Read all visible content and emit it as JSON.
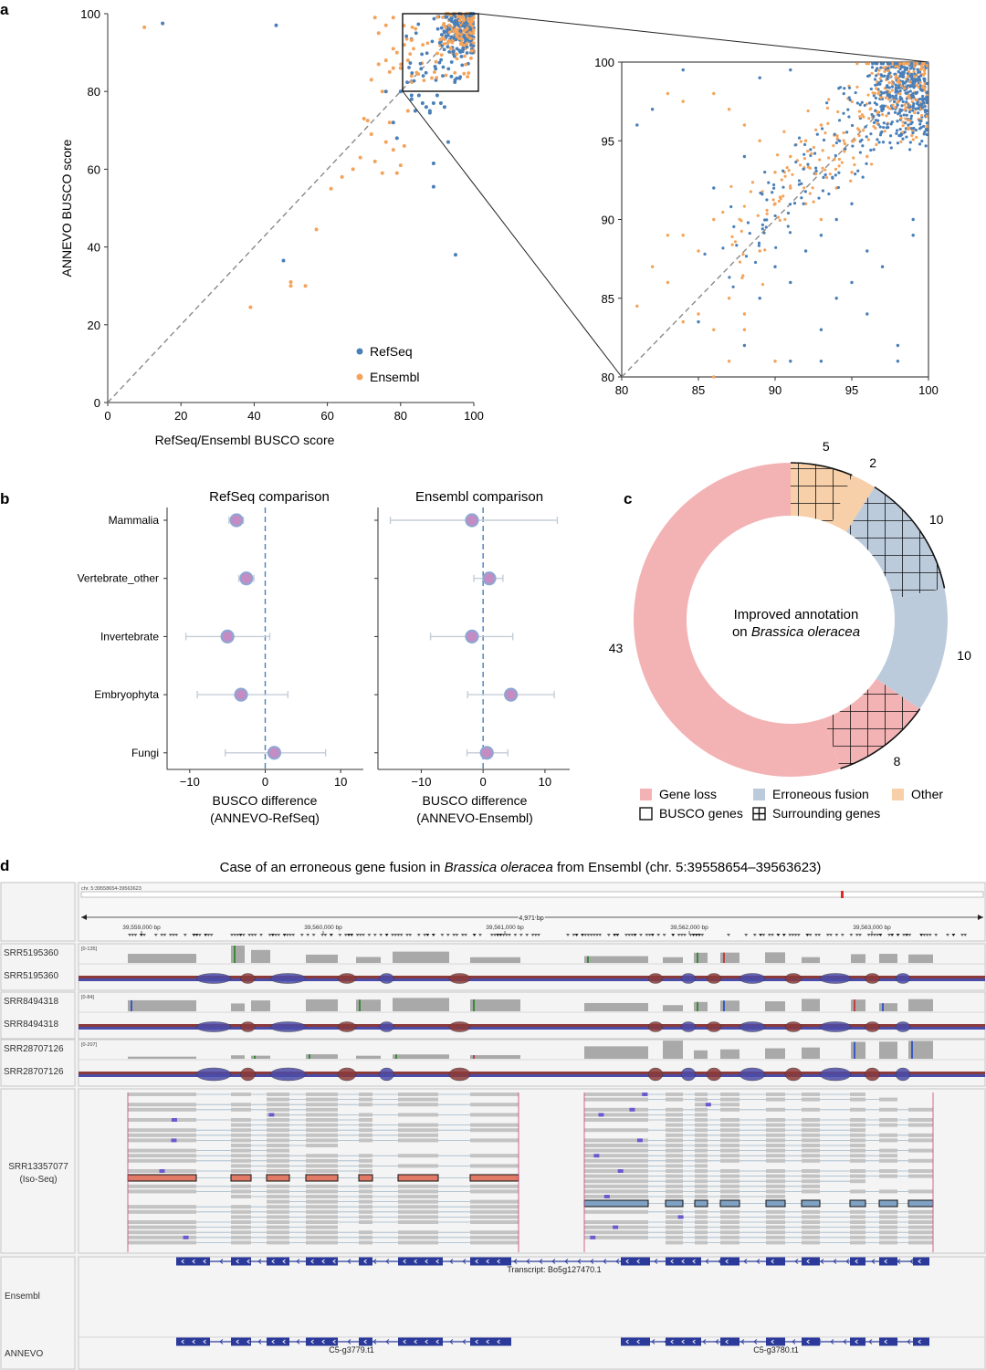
{
  "panel_labels": {
    "a": "a",
    "b": "b",
    "c": "c",
    "d": "d"
  },
  "colors": {
    "refseq": "#4a7fb8",
    "ensembl": "#f4a35a",
    "diag": "#7f7f7f",
    "gene_loss": "#f3b3b4",
    "erroneous_fusion": "#bccbdb",
    "other": "#f7cfa8",
    "forest_marker": "#c58bc3",
    "forest_edge": "#8fa6d2",
    "forest_ci": "#c5cdd8",
    "forest_zero": "#4a7fb8",
    "coverage": "#a9a9a9",
    "junction_red": "#8b3a3a",
    "junction_blue": "#4b4ba8",
    "read_gray": "#c3c3c3",
    "fused_red": "#e07a66",
    "fused_blue": "#7fa1c3",
    "gene_blue": "#2b3a9a"
  },
  "chart_data": [
    {
      "id": "a-main",
      "type": "scatter",
      "xlabel": "RefSeq/Ensembl BUSCO score",
      "ylabel": "ANNEVO BUSCO score",
      "xlim": [
        0,
        100
      ],
      "ylim": [
        0,
        100
      ],
      "xticks": [
        "0",
        "20",
        "40",
        "60",
        "80",
        "100"
      ],
      "yticks": [
        "0",
        "20",
        "40",
        "60",
        "80",
        "100"
      ],
      "legend": [
        {
          "name": "RefSeq"
        },
        {
          "name": "Ensembl"
        }
      ],
      "legend_position": "bottom-center",
      "inset_box": {
        "x": [
          80,
          100
        ],
        "y": [
          80,
          100
        ]
      },
      "series": [
        {
          "name": "RefSeq",
          "points": [
            [
              15,
              97.5
            ],
            [
              46,
              97
            ],
            [
              48,
              36.5
            ],
            [
              95,
              38
            ],
            [
              89,
              61.5
            ],
            [
              89,
              55.5
            ],
            [
              93,
              67
            ],
            [
              88,
              74.5
            ],
            [
              85,
              79
            ],
            [
              80,
              80
            ],
            [
              76,
              80
            ],
            [
              79,
              68
            ],
            [
              83,
              78
            ],
            [
              86,
              77
            ],
            [
              87,
              76
            ],
            [
              88,
              75
            ],
            [
              84,
              75
            ],
            [
              83,
              79
            ],
            [
              90,
              79
            ],
            [
              91,
              77
            ],
            [
              92,
              76
            ],
            [
              89,
              77
            ],
            [
              78,
              72
            ]
          ]
        },
        {
          "name": "Ensembl",
          "points": [
            [
              10,
              96.5
            ],
            [
              39,
              24.5
            ],
            [
              50,
              31
            ],
            [
              50,
              30
            ],
            [
              54,
              30
            ],
            [
              57,
              44.5
            ],
            [
              61,
              55
            ],
            [
              64,
              58
            ],
            [
              67,
              60
            ],
            [
              69,
              63
            ],
            [
              70,
              73
            ],
            [
              71,
              72.5
            ],
            [
              72,
              69
            ],
            [
              73,
              62
            ],
            [
              75,
              59
            ],
            [
              76,
              67
            ],
            [
              77,
              72
            ],
            [
              78,
              65
            ],
            [
              79,
              59
            ],
            [
              80,
              61
            ],
            [
              81,
              66
            ],
            [
              82,
              75
            ],
            [
              72,
              83
            ],
            [
              74,
              87
            ],
            [
              76,
              88
            ],
            [
              77,
              85
            ],
            [
              75,
              80
            ],
            [
              78,
              86
            ],
            [
              80,
              86
            ],
            [
              82,
              88
            ],
            [
              83,
              84
            ],
            [
              78,
              91
            ],
            [
              79,
              90
            ],
            [
              81,
              92
            ],
            [
              74,
              95
            ],
            [
              76,
              97
            ],
            [
              73,
              99
            ],
            [
              78,
              99
            ]
          ]
        }
      ]
    },
    {
      "id": "a-inset",
      "type": "scatter",
      "xlim": [
        80,
        100
      ],
      "ylim": [
        80,
        100
      ],
      "xticks": [
        "80",
        "85",
        "90",
        "95",
        "100"
      ],
      "yticks": [
        "80",
        "85",
        "90",
        "95",
        "100"
      ],
      "series": [
        {
          "name": "RefSeq",
          "points": [
            [
              81,
              96
            ],
            [
              82,
              97
            ],
            [
              84,
              99.5
            ],
            [
              89,
              99
            ],
            [
              91,
              99.5
            ],
            [
              88,
              94
            ],
            [
              86,
              92
            ],
            [
              85,
              83.5
            ],
            [
              88,
              82
            ],
            [
              89,
              85
            ],
            [
              90,
              87
            ],
            [
              91,
              86
            ],
            [
              92,
              88
            ],
            [
              93,
              89
            ],
            [
              94,
              90
            ],
            [
              95,
              91
            ],
            [
              93,
              81
            ],
            [
              91,
              81
            ],
            [
              98,
              82
            ],
            [
              98,
              81
            ],
            [
              99,
              90
            ],
            [
              99,
              89
            ],
            [
              96,
              88
            ],
            [
              97,
              87
            ],
            [
              96,
              84
            ],
            [
              95,
              86
            ],
            [
              94,
              85
            ],
            [
              93,
              83
            ]
          ]
        },
        {
          "name": "Ensembl",
          "points": [
            [
              81,
              84.5
            ],
            [
              82,
              87
            ],
            [
              83,
              86
            ],
            [
              83,
              89
            ],
            [
              84,
              89
            ],
            [
              85,
              88
            ],
            [
              86,
              90
            ],
            [
              84,
              83.5
            ],
            [
              85,
              84
            ],
            [
              86,
              83
            ],
            [
              87,
              85
            ],
            [
              88,
              84
            ],
            [
              88,
              83
            ],
            [
              89,
              88
            ],
            [
              90,
              91
            ],
            [
              91,
              92
            ],
            [
              92,
              91
            ],
            [
              93,
              90
            ],
            [
              94,
              92
            ],
            [
              95,
              93
            ],
            [
              96,
              94
            ],
            [
              83,
              98
            ],
            [
              84,
              97.5
            ],
            [
              86,
              98
            ],
            [
              87,
              97
            ],
            [
              88,
              96
            ],
            [
              89,
              95
            ],
            [
              90,
              93
            ],
            [
              91,
              94
            ],
            [
              92,
              95
            ],
            [
              93,
              96
            ],
            [
              87,
              81
            ],
            [
              90,
              81
            ],
            [
              86,
              80
            ]
          ]
        }
      ]
    },
    {
      "id": "b-refseq",
      "type": "scatter",
      "title": "RefSeq comparison",
      "xlabel": "BUSCO difference\n(ANNEVO-RefSeq)",
      "xlim": [
        -13,
        13
      ],
      "xticks": [
        "−10",
        "0",
        "10"
      ],
      "categories": [
        "Mammalia",
        "Vertebrate_other",
        "Invertebrate",
        "Embryophyta",
        "Fungi"
      ],
      "values": [
        -3.8,
        -2.5,
        -5.0,
        -3.2,
        1.2
      ],
      "ci_low": [
        -4.8,
        -3.5,
        -10.5,
        -9.0,
        -5.3
      ],
      "ci_high": [
        -2.9,
        -1.5,
        0.6,
        3.0,
        8.0
      ]
    },
    {
      "id": "b-ensembl",
      "type": "scatter",
      "title": "Ensembl comparison",
      "xlabel": "BUSCO difference\n(ANNEVO-Ensembl)",
      "xlim": [
        -17,
        14
      ],
      "xticks": [
        "−10",
        "0",
        "10"
      ],
      "categories": [
        "Mammalia",
        "Vertebrate_other",
        "Invertebrate",
        "Embryophyta",
        "Fungi"
      ],
      "values": [
        -1.8,
        1.0,
        -1.8,
        4.5,
        0.6
      ],
      "ci_low": [
        -15.0,
        -1.5,
        -8.5,
        -2.5,
        -2.6
      ],
      "ci_high": [
        12.0,
        3.2,
        4.8,
        11.5,
        4.0
      ]
    },
    {
      "id": "c-donut",
      "type": "pie",
      "center_label": "Improved annotation",
      "center_label_line2_prefix": "on ",
      "center_label_line2_italic": "Brassica oleracea",
      "slices": [
        {
          "label": "5",
          "value": 5,
          "category": "Other",
          "hatched": true
        },
        {
          "label": "2",
          "value": 2,
          "category": "Other",
          "hatched": false
        },
        {
          "label": "10",
          "value": 10,
          "category": "Erroneous fusion",
          "hatched": true
        },
        {
          "label": "10",
          "value": 10,
          "category": "Erroneous fusion",
          "hatched": false
        },
        {
          "label": "8",
          "value": 8,
          "category": "Gene loss",
          "hatched": true
        },
        {
          "label": "43",
          "value": 43,
          "category": "Gene loss",
          "hatched": false
        }
      ],
      "legend": {
        "gene_loss": "Gene loss",
        "erroneous_fusion": "Erroneous fusion",
        "other": "Other",
        "busco_genes": "BUSCO genes",
        "surrounding_genes": "Surrounding genes"
      }
    }
  ],
  "panel_d": {
    "title_prefix": "Case of an erroneous gene fusion in ",
    "title_italic": "Brassica oleracea",
    "title_suffix": " from Ensembl (chr. 5:39558654–39563623)",
    "locus": "chr. 5:39558654-39563623",
    "span": "4,971 bp",
    "ruler_ticks": [
      "39,559,000 bp",
      "39,560,000 bp",
      "39,561,000 bp",
      "39,562,000 bp",
      "39,563,000 bp"
    ],
    "tracks": [
      {
        "name": "SRR5195360",
        "range": "[0-135]"
      },
      {
        "name": "SRR8494318",
        "range": "[0-84]"
      },
      {
        "name": "SRR28707126",
        "range": "[0-207]"
      }
    ],
    "isoseq_name": "SRR13357077",
    "isoseq_sub": "(Iso-Seq)",
    "ensembl_label": "Ensembl",
    "annevo_label": "ANNEVO",
    "ensembl_transcript": "Transcript: Bo5g127470.1",
    "annevo_genes": [
      "C5-g3779.t1",
      "C5-g3780.t1"
    ]
  }
}
